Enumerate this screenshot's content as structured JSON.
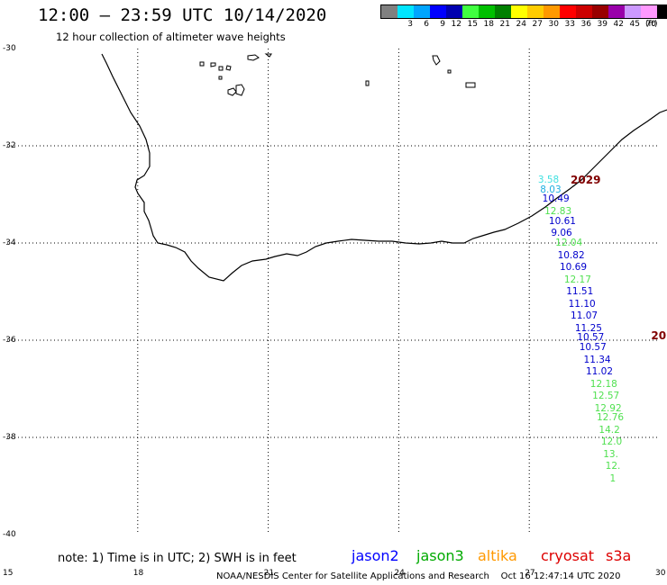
{
  "header": {
    "title": "12:00 – 23:59 UTC 10/14/2020",
    "subtitle": "12 hour collection of altimeter wave heights"
  },
  "colorbar": {
    "unit": "(ft)",
    "swatches": [
      {
        "color": "#808080",
        "label": ""
      },
      {
        "color": "#00e5ff",
        "label": "3"
      },
      {
        "color": "#00a5ff",
        "label": "6"
      },
      {
        "color": "#0000ff",
        "label": "9"
      },
      {
        "color": "#0000b0",
        "label": "12"
      },
      {
        "color": "#40ff40",
        "label": "15"
      },
      {
        "color": "#00c000",
        "label": "18"
      },
      {
        "color": "#008000",
        "label": "21"
      },
      {
        "color": "#ffff00",
        "label": "24"
      },
      {
        "color": "#ffcc00",
        "label": "27"
      },
      {
        "color": "#ff9900",
        "label": "30"
      },
      {
        "color": "#ff0000",
        "label": "33"
      },
      {
        "color": "#cc0000",
        "label": "36"
      },
      {
        "color": "#990000",
        "label": "39"
      },
      {
        "color": "#9900aa",
        "label": "42"
      },
      {
        "color": "#cc99ff",
        "label": "45"
      },
      {
        "color": "#ff99ff",
        "label": "70"
      },
      {
        "color": "#000000",
        "label": ""
      }
    ]
  },
  "axes": {
    "lat_labels": [
      "-30",
      "-32",
      "-34",
      "-36",
      "-38",
      "-40"
    ],
    "lon_labels": [
      "15",
      "18",
      "21",
      "24",
      "27",
      "30"
    ]
  },
  "map_data": {
    "region": {
      "lon": [
        15,
        30
      ],
      "lat": [
        -40,
        -30
      ]
    },
    "track_times": [
      {
        "text": "2029",
        "lon": 27.95,
        "lat": -32.7
      },
      {
        "text": "20",
        "lon": 29.8,
        "lat": -35.9
      }
    ],
    "wave_heights": [
      {
        "text": "3.58",
        "lon": 27.2,
        "lat": -32.7,
        "color": "#40e0e0"
      },
      {
        "text": "8.03",
        "lon": 27.25,
        "lat": -32.9,
        "color": "#20b0e0"
      },
      {
        "text": "10.49",
        "lon": 27.3,
        "lat": -33.1,
        "color": "#0000cc"
      },
      {
        "text": "12.83",
        "lon": 27.35,
        "lat": -33.35,
        "color": "#50e050"
      },
      {
        "text": "10.61",
        "lon": 27.45,
        "lat": -33.55,
        "color": "#0000cc"
      },
      {
        "text": "9.06",
        "lon": 27.5,
        "lat": -33.8,
        "color": "#0000cc"
      },
      {
        "text": "12.04",
        "lon": 27.6,
        "lat": -34.0,
        "color": "#50e050"
      },
      {
        "text": "10.82",
        "lon": 27.65,
        "lat": -34.25,
        "color": "#0000cc"
      },
      {
        "text": "10.69",
        "lon": 27.7,
        "lat": -34.5,
        "color": "#0000cc"
      },
      {
        "text": "12.17",
        "lon": 27.8,
        "lat": -34.75,
        "color": "#50e050"
      },
      {
        "text": "11.51",
        "lon": 27.85,
        "lat": -35.0,
        "color": "#0000cc"
      },
      {
        "text": "11.10",
        "lon": 27.9,
        "lat": -35.25,
        "color": "#0000cc"
      },
      {
        "text": "11.07",
        "lon": 27.95,
        "lat": -35.5,
        "color": "#0000cc"
      },
      {
        "text": "11.25",
        "lon": 28.05,
        "lat": -35.75,
        "color": "#0000cc"
      },
      {
        "text": "10.57",
        "lon": 28.1,
        "lat": -35.95,
        "color": "#0000cc"
      },
      {
        "text": "10.57",
        "lon": 28.15,
        "lat": -36.15,
        "color": "#0000cc"
      },
      {
        "text": "11.34",
        "lon": 28.25,
        "lat": -36.4,
        "color": "#0000cc"
      },
      {
        "text": "11.02",
        "lon": 28.3,
        "lat": -36.65,
        "color": "#0000cc"
      },
      {
        "text": "12.18",
        "lon": 28.4,
        "lat": -36.9,
        "color": "#50e050"
      },
      {
        "text": "12.57",
        "lon": 28.45,
        "lat": -37.15,
        "color": "#50e050"
      },
      {
        "text": "12.92",
        "lon": 28.5,
        "lat": -37.4,
        "color": "#50e050"
      },
      {
        "text": "12.76",
        "lon": 28.55,
        "lat": -37.6,
        "color": "#50e050"
      },
      {
        "text": "14.2",
        "lon": 28.6,
        "lat": -37.85,
        "color": "#50e050"
      },
      {
        "text": "12.0",
        "lon": 28.65,
        "lat": -38.1,
        "color": "#50e050"
      },
      {
        "text": "13.",
        "lon": 28.7,
        "lat": -38.35,
        "color": "#50e050"
      },
      {
        "text": "12.",
        "lon": 28.75,
        "lat": -38.6,
        "color": "#50e050"
      },
      {
        "text": "1",
        "lon": 28.85,
        "lat": -38.85,
        "color": "#50e050"
      }
    ]
  },
  "footer": {
    "note": "note: 1) Time is in UTC; 2) SWH is in feet",
    "satellites": [
      {
        "name": "jason2",
        "color": "#0000ff"
      },
      {
        "name": "jason3",
        "color": "#00aa00"
      },
      {
        "name": "altika",
        "color": "#ff9900"
      },
      {
        "name": "cryosat",
        "color": "#dd0000"
      },
      {
        "name": "s3a",
        "color": "#dd0000"
      }
    ],
    "credit": "NOAA/NESDIS Center for Satellite Applications and Research    Oct 16 12:47:14 UTC 2020"
  }
}
